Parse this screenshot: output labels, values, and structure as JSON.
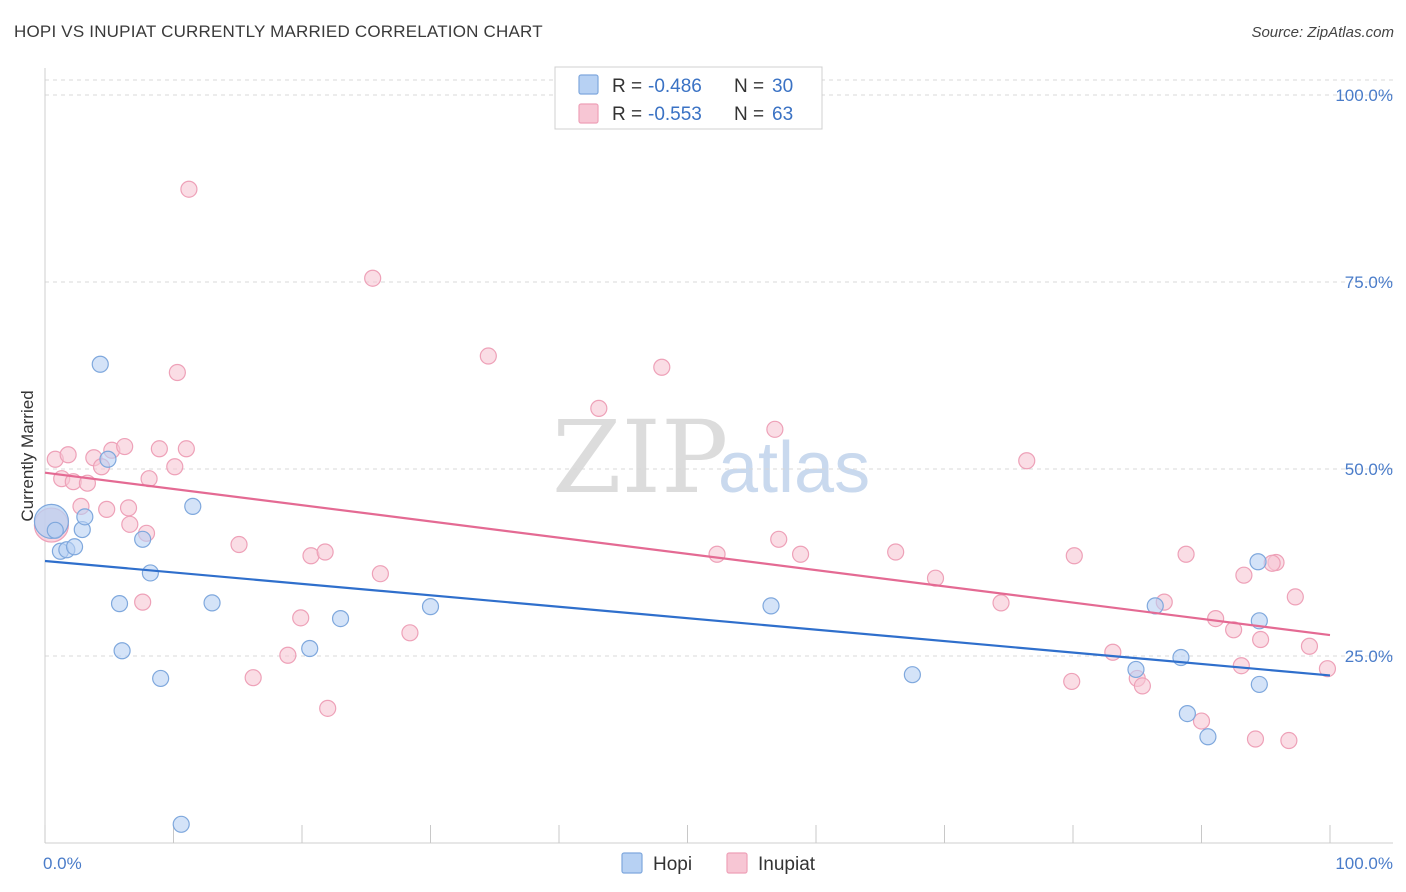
{
  "title": "HOPI VS INUPIAT CURRENTLY MARRIED CORRELATION CHART",
  "source": "Source: ZipAtlas.com",
  "watermark": {
    "zip": "ZIP",
    "atlas": "atlas"
  },
  "colors": {
    "hopi_fill": "#b7d1f3",
    "hopi_stroke": "#7fa8dd",
    "hopi_line": "#2f6fcc",
    "inupiat_fill": "#f7c6d4",
    "inupiat_stroke": "#eea1b8",
    "inupiat_line": "#e46a93",
    "grid": "#d8d8d8",
    "axis_text": "#4a7cc9"
  },
  "legend": {
    "rows": [
      {
        "series": "hopi",
        "r_label": "R =",
        "r_value": "-0.486",
        "n_label": "N =",
        "n_value": "30"
      },
      {
        "series": "inupiat",
        "r_label": "R =",
        "r_value": "-0.553",
        "n_label": "N =",
        "n_value": "63"
      }
    ]
  },
  "bottom_legend": [
    {
      "series": "hopi",
      "label": "Hopi"
    },
    {
      "series": "inupiat",
      "label": "Inupiat"
    }
  ],
  "chart_data": {
    "type": "scatter",
    "title": "HOPI VS INUPIAT CURRENTLY MARRIED CORRELATION CHART",
    "xlabel": "",
    "ylabel": "Currently Married",
    "xlim": [
      0,
      100
    ],
    "ylim": [
      0,
      102
    ],
    "x_tick_labels": [
      "0.0%",
      "100.0%"
    ],
    "y_ticks": [
      25,
      50,
      75,
      100
    ],
    "y_tick_labels": [
      "25.0%",
      "50.0%",
      "75.0%",
      "100.0%"
    ],
    "grid": true,
    "series": [
      {
        "name": "Hopi",
        "R": -0.486,
        "N": 30,
        "trend": {
          "x": [
            0,
            100
          ],
          "y": [
            37.7,
            22.4
          ]
        },
        "points": [
          {
            "x": 0.5,
            "y": 43.0,
            "big": true
          },
          {
            "x": 0.8,
            "y": 41.8
          },
          {
            "x": 1.2,
            "y": 39.0
          },
          {
            "x": 1.7,
            "y": 39.2
          },
          {
            "x": 2.3,
            "y": 39.6
          },
          {
            "x": 2.9,
            "y": 41.9
          },
          {
            "x": 3.1,
            "y": 43.6
          },
          {
            "x": 4.3,
            "y": 64.0
          },
          {
            "x": 4.9,
            "y": 51.3
          },
          {
            "x": 5.8,
            "y": 32.0
          },
          {
            "x": 6.0,
            "y": 25.7
          },
          {
            "x": 7.6,
            "y": 40.6
          },
          {
            "x": 8.2,
            "y": 36.1
          },
          {
            "x": 9.0,
            "y": 22.0
          },
          {
            "x": 11.5,
            "y": 45.0
          },
          {
            "x": 10.6,
            "y": 2.5
          },
          {
            "x": 13.0,
            "y": 32.1
          },
          {
            "x": 20.6,
            "y": 26.0
          },
          {
            "x": 23.0,
            "y": 30.0
          },
          {
            "x": 30.0,
            "y": 31.6
          },
          {
            "x": 56.5,
            "y": 31.7
          },
          {
            "x": 67.5,
            "y": 22.5
          },
          {
            "x": 84.9,
            "y": 23.2
          },
          {
            "x": 86.4,
            "y": 31.7
          },
          {
            "x": 88.4,
            "y": 24.8
          },
          {
            "x": 88.9,
            "y": 17.3
          },
          {
            "x": 90.5,
            "y": 14.2
          },
          {
            "x": 94.4,
            "y": 37.6
          },
          {
            "x": 94.5,
            "y": 21.2
          },
          {
            "x": 94.5,
            "y": 29.7
          }
        ]
      },
      {
        "name": "Inupiat",
        "R": -0.553,
        "N": 63,
        "trend": {
          "x": [
            0,
            100
          ],
          "y": [
            49.5,
            27.8
          ]
        },
        "points": [
          {
            "x": 0.5,
            "y": 42.5,
            "big": true
          },
          {
            "x": 0.8,
            "y": 51.3
          },
          {
            "x": 1.3,
            "y": 48.7
          },
          {
            "x": 1.8,
            "y": 51.9
          },
          {
            "x": 2.2,
            "y": 48.3
          },
          {
            "x": 2.8,
            "y": 45.0
          },
          {
            "x": 3.3,
            "y": 48.1
          },
          {
            "x": 3.8,
            "y": 51.5
          },
          {
            "x": 4.4,
            "y": 50.3
          },
          {
            "x": 4.8,
            "y": 44.6
          },
          {
            "x": 5.2,
            "y": 52.5
          },
          {
            "x": 6.2,
            "y": 53.0
          },
          {
            "x": 6.5,
            "y": 44.8
          },
          {
            "x": 6.6,
            "y": 42.6
          },
          {
            "x": 7.6,
            "y": 32.2
          },
          {
            "x": 7.9,
            "y": 41.4
          },
          {
            "x": 8.1,
            "y": 48.7
          },
          {
            "x": 8.9,
            "y": 52.7
          },
          {
            "x": 10.1,
            "y": 50.3
          },
          {
            "x": 10.3,
            "y": 62.9
          },
          {
            "x": 11.0,
            "y": 52.7
          },
          {
            "x": 11.2,
            "y": 87.4
          },
          {
            "x": 15.1,
            "y": 39.9
          },
          {
            "x": 16.2,
            "y": 22.1
          },
          {
            "x": 18.9,
            "y": 25.1
          },
          {
            "x": 19.9,
            "y": 30.1
          },
          {
            "x": 20.7,
            "y": 38.4
          },
          {
            "x": 21.8,
            "y": 38.9
          },
          {
            "x": 22.0,
            "y": 18.0
          },
          {
            "x": 25.5,
            "y": 75.5
          },
          {
            "x": 26.1,
            "y": 36.0
          },
          {
            "x": 28.4,
            "y": 28.1
          },
          {
            "x": 34.5,
            "y": 65.1
          },
          {
            "x": 43.1,
            "y": 58.1
          },
          {
            "x": 48.0,
            "y": 63.6
          },
          {
            "x": 52.3,
            "y": 38.6
          },
          {
            "x": 56.8,
            "y": 55.3
          },
          {
            "x": 57.1,
            "y": 40.6
          },
          {
            "x": 58.8,
            "y": 38.6
          },
          {
            "x": 66.2,
            "y": 38.9
          },
          {
            "x": 69.3,
            "y": 35.4
          },
          {
            "x": 74.4,
            "y": 32.1
          },
          {
            "x": 76.4,
            "y": 51.1
          },
          {
            "x": 79.9,
            "y": 21.6
          },
          {
            "x": 80.1,
            "y": 38.4
          },
          {
            "x": 83.1,
            "y": 25.5
          },
          {
            "x": 85.0,
            "y": 22.0
          },
          {
            "x": 85.4,
            "y": 21.0
          },
          {
            "x": 87.1,
            "y": 32.2
          },
          {
            "x": 88.8,
            "y": 38.6
          },
          {
            "x": 90.0,
            "y": 16.3
          },
          {
            "x": 91.1,
            "y": 30.0
          },
          {
            "x": 92.5,
            "y": 28.5
          },
          {
            "x": 93.1,
            "y": 23.7
          },
          {
            "x": 93.3,
            "y": 35.8
          },
          {
            "x": 94.2,
            "y": 13.9
          },
          {
            "x": 94.6,
            "y": 27.2
          },
          {
            "x": 95.8,
            "y": 37.5
          },
          {
            "x": 95.5,
            "y": 37.4
          },
          {
            "x": 96.8,
            "y": 13.7
          },
          {
            "x": 97.3,
            "y": 32.9
          },
          {
            "x": 98.4,
            "y": 26.3
          },
          {
            "x": 99.8,
            "y": 23.3
          }
        ]
      }
    ]
  }
}
